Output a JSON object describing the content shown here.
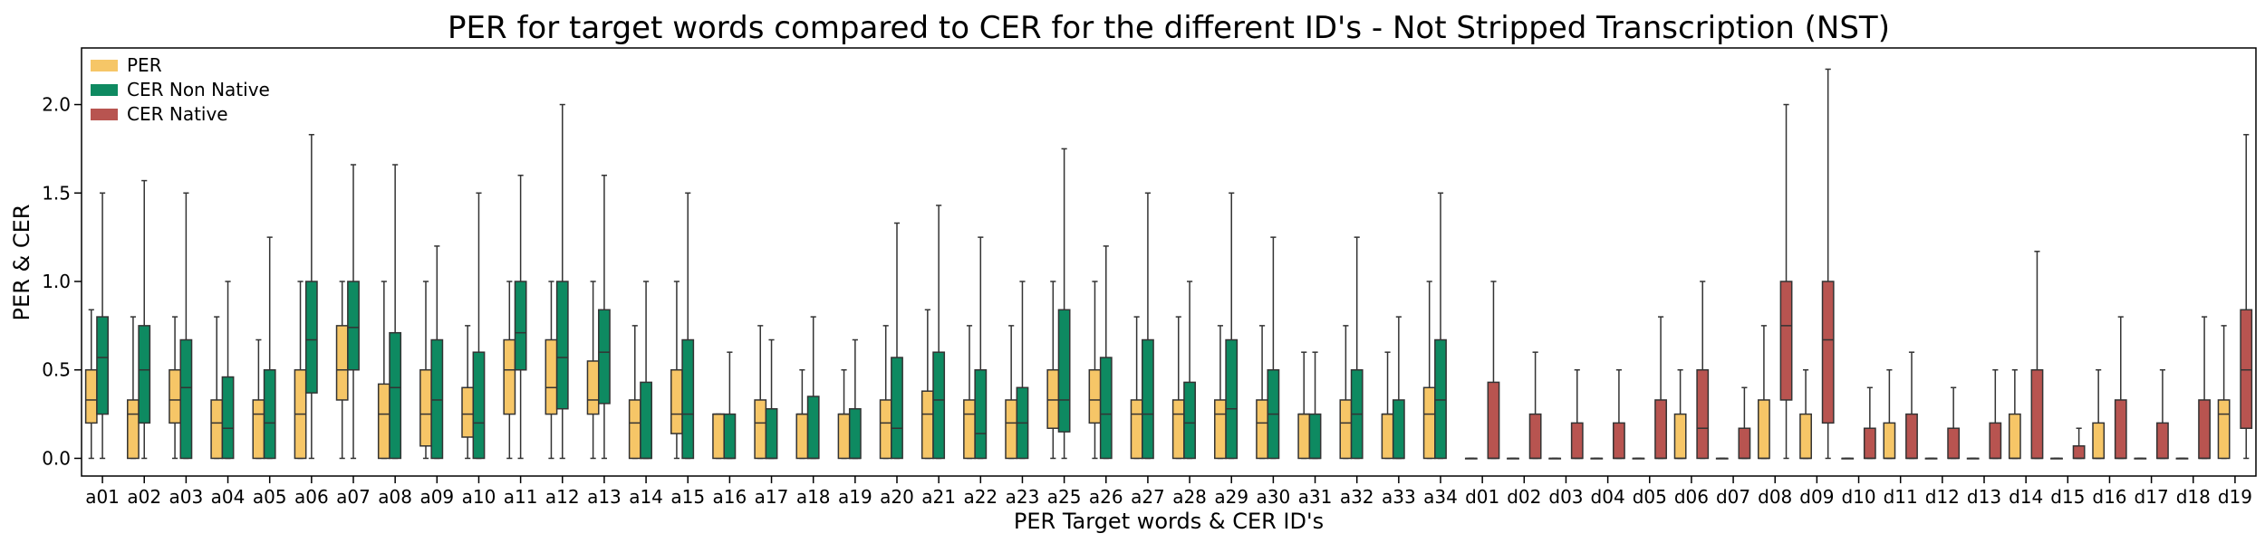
{
  "chart_data": {
    "type": "box",
    "title": "PER for target words compared to CER for the different ID's - Not Stripped Transcription (NST)",
    "xlabel": "PER Target words &  CER ID's",
    "ylabel": "PER & CER",
    "ylim": [
      -0.1,
      2.32
    ],
    "yticks": [
      0.0,
      0.5,
      1.0,
      1.5,
      2.0
    ],
    "ytick_labels": [
      "0.0",
      "0.5",
      "1.0",
      "1.5",
      "2.0"
    ],
    "grid": false,
    "legend_position": "top-left",
    "colors": {
      "PER": "#F6C667",
      "CER Non Native": "#0E8A61",
      "CER Native": "#B85450",
      "edge": "#333333"
    },
    "categories": [
      "a01",
      "a02",
      "a03",
      "a04",
      "a05",
      "a06",
      "a07",
      "a08",
      "a09",
      "a10",
      "a11",
      "a12",
      "a13",
      "a14",
      "a15",
      "a16",
      "a17",
      "a18",
      "a19",
      "a20",
      "a21",
      "a22",
      "a23",
      "a25",
      "a26",
      "a27",
      "a28",
      "a29",
      "a30",
      "a31",
      "a32",
      "a33",
      "a34",
      "d01",
      "d02",
      "d03",
      "d04",
      "d05",
      "d06",
      "d07",
      "d08",
      "d09",
      "d10",
      "d11",
      "d12",
      "d13",
      "d14",
      "d15",
      "d16",
      "d17",
      "d18",
      "d19"
    ],
    "series": [
      {
        "name": "PER",
        "boxes": [
          [
            0,
            0.2,
            0.33,
            0.5,
            0.84
          ],
          [
            0,
            0,
            0.25,
            0.33,
            0.8
          ],
          [
            0,
            0.2,
            0.33,
            0.5,
            0.8
          ],
          [
            0,
            0,
            0.2,
            0.33,
            0.8
          ],
          [
            0,
            0,
            0.25,
            0.33,
            0.67
          ],
          [
            0,
            0,
            0.25,
            0.5,
            1.0
          ],
          [
            0,
            0.33,
            0.5,
            0.75,
            1.0
          ],
          [
            0,
            0,
            0.25,
            0.42,
            1.0
          ],
          [
            0,
            0.07,
            0.25,
            0.5,
            1.0
          ],
          [
            0,
            0.12,
            0.25,
            0.4,
            0.75
          ],
          [
            0,
            0.25,
            0.5,
            0.67,
            1.0
          ],
          [
            0,
            0.25,
            0.4,
            0.67,
            1.0
          ],
          [
            0,
            0.25,
            0.33,
            0.55,
            1.0
          ],
          [
            0,
            0,
            0.2,
            0.33,
            0.75
          ],
          [
            0,
            0.14,
            0.25,
            0.5,
            1.0
          ],
          [
            0,
            0,
            0.25,
            0.25,
            0.25
          ],
          [
            0,
            0,
            0.2,
            0.33,
            0.75
          ],
          [
            0,
            0,
            0.25,
            0.25,
            0.5
          ],
          [
            0,
            0,
            0.25,
            0.25,
            0.5
          ],
          [
            0,
            0,
            0.2,
            0.33,
            0.75
          ],
          [
            0,
            0,
            0.25,
            0.38,
            0.84
          ],
          [
            0,
            0,
            0.25,
            0.33,
            0.75
          ],
          [
            0,
            0,
            0.2,
            0.33,
            0.75
          ],
          [
            0,
            0.17,
            0.33,
            0.5,
            1.0
          ],
          [
            0,
            0.2,
            0.33,
            0.5,
            1.0
          ],
          [
            0,
            0,
            0.25,
            0.33,
            0.8
          ],
          [
            0,
            0,
            0.25,
            0.33,
            0.8
          ],
          [
            0,
            0,
            0.25,
            0.33,
            0.75
          ],
          [
            0,
            0,
            0.2,
            0.33,
            0.75
          ],
          [
            0,
            0,
            0.25,
            0.25,
            0.6
          ],
          [
            0,
            0,
            0.2,
            0.33,
            0.75
          ],
          [
            0,
            0,
            0.25,
            0.25,
            0.6
          ],
          [
            0,
            0,
            0.25,
            0.4,
            1.0
          ],
          [
            0,
            0,
            0,
            0,
            0
          ],
          [
            0,
            0,
            0,
            0,
            0
          ],
          [
            0,
            0,
            0,
            0,
            0
          ],
          [
            0,
            0,
            0,
            0,
            0
          ],
          [
            0,
            0,
            0,
            0,
            0
          ],
          [
            0,
            0,
            0,
            0.25,
            0.5
          ],
          [
            0,
            0,
            0,
            0,
            0
          ],
          [
            0,
            0,
            0,
            0.33,
            0.75
          ],
          [
            0,
            0,
            0,
            0.25,
            0.5
          ],
          [
            0,
            0,
            0,
            0,
            0
          ],
          [
            0,
            0,
            0,
            0.2,
            0.5
          ],
          [
            0,
            0,
            0,
            0,
            0
          ],
          [
            0,
            0,
            0,
            0,
            0
          ],
          [
            0,
            0,
            0,
            0.25,
            0.5
          ],
          [
            0,
            0,
            0,
            0,
            0
          ],
          [
            0,
            0,
            0,
            0.2,
            0.5
          ],
          [
            0,
            0,
            0,
            0,
            0
          ],
          [
            0,
            0,
            0,
            0,
            0
          ],
          [
            0,
            0,
            0.25,
            0.33,
            0.75
          ]
        ]
      },
      {
        "name": "CER Non Native",
        "boxes": [
          [
            0,
            0.25,
            0.57,
            0.8,
            1.5
          ],
          [
            0,
            0.2,
            0.5,
            0.75,
            1.57
          ],
          [
            0,
            0,
            0.4,
            0.67,
            1.5
          ],
          [
            0,
            0,
            0.17,
            0.46,
            1.0
          ],
          [
            0,
            0,
            0.2,
            0.5,
            1.25
          ],
          [
            0,
            0.37,
            0.67,
            1.0,
            1.83
          ],
          [
            0,
            0.5,
            0.74,
            1.0,
            1.66
          ],
          [
            0,
            0,
            0.4,
            0.71,
            1.66
          ],
          [
            0,
            0,
            0.33,
            0.67,
            1.2
          ],
          [
            0,
            0,
            0.2,
            0.6,
            1.5
          ],
          [
            0,
            0.5,
            0.71,
            1.0,
            1.6
          ],
          [
            0,
            0.28,
            0.57,
            1.0,
            2.0
          ],
          [
            0,
            0.31,
            0.6,
            0.84,
            1.6
          ],
          [
            0,
            0,
            0,
            0.43,
            1.0
          ],
          [
            0,
            0,
            0.25,
            0.67,
            1.5
          ],
          [
            0,
            0,
            0,
            0.25,
            0.6
          ],
          [
            0,
            0,
            0,
            0.28,
            0.67
          ],
          [
            0,
            0,
            0,
            0.35,
            0.8
          ],
          [
            0,
            0,
            0,
            0.28,
            0.67
          ],
          [
            0,
            0,
            0.17,
            0.57,
            1.33
          ],
          [
            0,
            0,
            0.33,
            0.6,
            1.43
          ],
          [
            0,
            0,
            0.14,
            0.5,
            1.25
          ],
          [
            0,
            0,
            0.2,
            0.4,
            1.0
          ],
          [
            0,
            0.15,
            0.33,
            0.84,
            1.75
          ],
          [
            0,
            0,
            0.25,
            0.57,
            1.2
          ],
          [
            0,
            0,
            0.25,
            0.67,
            1.5
          ],
          [
            0,
            0,
            0.2,
            0.43,
            1.0
          ],
          [
            0,
            0,
            0.28,
            0.67,
            1.5
          ],
          [
            0,
            0,
            0.25,
            0.5,
            1.25
          ],
          [
            0,
            0,
            0,
            0.25,
            0.6
          ],
          [
            0,
            0,
            0.25,
            0.5,
            1.25
          ],
          [
            0,
            0,
            0,
            0.33,
            0.8
          ],
          [
            0,
            0,
            0.33,
            0.67,
            1.5
          ],
          null,
          null,
          null,
          null,
          null,
          null,
          null,
          null,
          null,
          null,
          null,
          null,
          null,
          null,
          null,
          null,
          null,
          null,
          null
        ]
      },
      {
        "name": "CER Native",
        "boxes": [
          null,
          null,
          null,
          null,
          null,
          null,
          null,
          null,
          null,
          null,
          null,
          null,
          null,
          null,
          null,
          null,
          null,
          null,
          null,
          null,
          null,
          null,
          null,
          null,
          null,
          null,
          null,
          null,
          null,
          null,
          null,
          null,
          null,
          [
            0,
            0,
            0,
            0.43,
            1.0
          ],
          [
            0,
            0,
            0,
            0.25,
            0.6
          ],
          [
            0,
            0,
            0,
            0.2,
            0.5
          ],
          [
            0,
            0,
            0,
            0.2,
            0.5
          ],
          [
            0,
            0,
            0,
            0.33,
            0.8
          ],
          [
            0,
            0,
            0.17,
            0.5,
            1.0
          ],
          [
            0,
            0,
            0,
            0.17,
            0.4
          ],
          [
            0,
            0.33,
            0.75,
            1.0,
            2.0
          ],
          [
            0,
            0.2,
            0.67,
            1.0,
            2.2
          ],
          [
            0,
            0,
            0,
            0.17,
            0.4
          ],
          [
            0,
            0,
            0,
            0.25,
            0.6
          ],
          [
            0,
            0,
            0,
            0.17,
            0.4
          ],
          [
            0,
            0,
            0,
            0.2,
            0.5
          ],
          [
            0,
            0,
            0,
            0.5,
            1.17
          ],
          [
            0,
            0,
            0,
            0.07,
            0.17
          ],
          [
            0,
            0,
            0,
            0.33,
            0.8
          ],
          [
            0,
            0,
            0,
            0.2,
            0.5
          ],
          [
            0,
            0,
            0,
            0.33,
            0.8
          ],
          [
            0,
            0.17,
            0.5,
            0.84,
            1.83
          ]
        ]
      }
    ]
  }
}
